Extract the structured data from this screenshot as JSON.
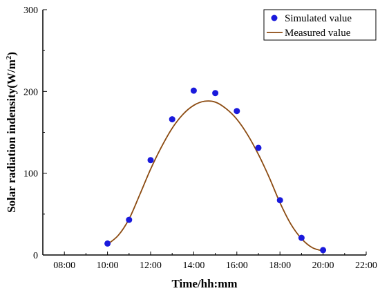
{
  "chart_data": {
    "type": "scatter",
    "xlabel": "Time/hh:mm",
    "ylabel_main": "Solar radiation indensity(W/m",
    "ylabel_sup": "2",
    "ylabel_close": ")",
    "xlim": [
      7,
      22
    ],
    "ylim": [
      0,
      300
    ],
    "x_ticks": [
      "08:00",
      "10:00",
      "12:00",
      "14:00",
      "16:00",
      "18:00",
      "20:00",
      "22:00"
    ],
    "y_ticks": [
      "0",
      "100",
      "200",
      "300"
    ],
    "grid": false,
    "legend_position": "top-right",
    "series": [
      {
        "name": "Simulated value",
        "kind": "scatter",
        "color": "#1a1adc",
        "x": [
          10,
          11,
          12,
          13,
          14,
          15,
          16,
          17,
          18,
          19,
          20
        ],
        "y": [
          14,
          43,
          116,
          166,
          201,
          198,
          176,
          131,
          67,
          21,
          6
        ]
      },
      {
        "name": "Measured value",
        "kind": "line",
        "color": "#8b4a10",
        "x": [
          10,
          10.5,
          11,
          11.5,
          12,
          12.5,
          13,
          13.5,
          14,
          14.5,
          15,
          15.5,
          16,
          16.5,
          17,
          17.5,
          18,
          18.5,
          19,
          19.5,
          20
        ],
        "y": [
          13,
          24,
          44,
          74,
          105,
          132,
          155,
          172,
          183,
          188,
          187,
          179,
          166,
          147,
          123,
          95,
          64,
          38,
          20,
          9,
          5
        ]
      }
    ]
  }
}
